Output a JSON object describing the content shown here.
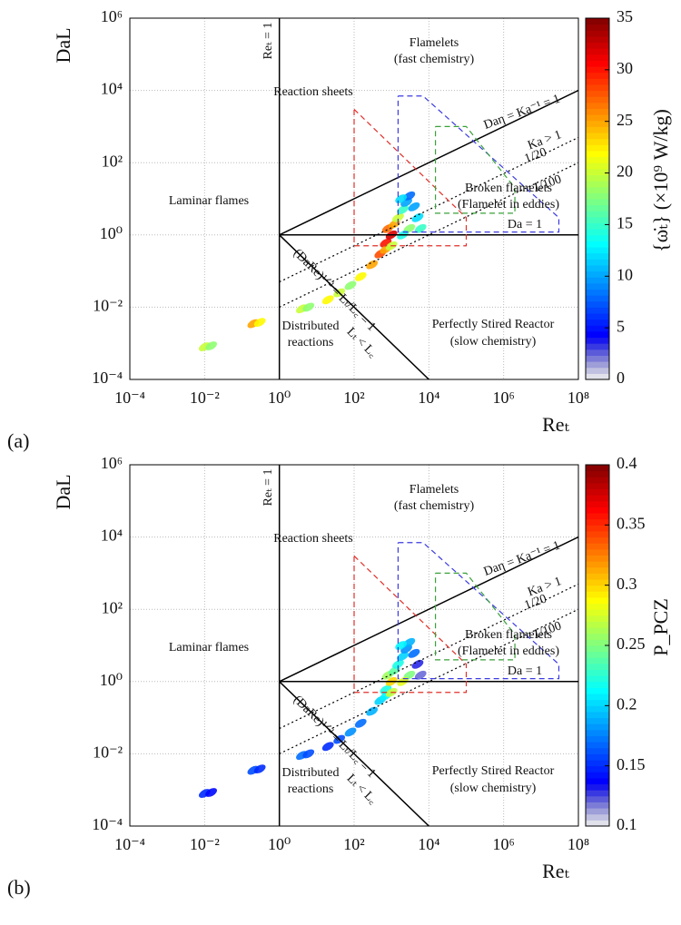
{
  "chart_data": [
    {
      "type": "scatter",
      "panel": "(a)",
      "xlabel": "Reₜ",
      "ylabel": "DaL",
      "log_x": true,
      "log_y": true,
      "grid": true,
      "xlim": [
        0.0001,
        100000000
      ],
      "ylim": [
        0.0001,
        1000000
      ],
      "xticks": [
        {
          "value": 0.0001,
          "label": "10⁻⁴"
        },
        {
          "value": 0.01,
          "label": "10⁻²"
        },
        {
          "value": 1,
          "label": "10⁰"
        },
        {
          "value": 100,
          "label": "10²"
        },
        {
          "value": 10000,
          "label": "10⁴"
        },
        {
          "value": 1000000,
          "label": "10⁶"
        },
        {
          "value": 100000000,
          "label": "10⁸"
        }
      ],
      "yticks": [
        {
          "value": 0.0001,
          "label": "10⁻⁴"
        },
        {
          "value": 0.01,
          "label": "10⁻²"
        },
        {
          "value": 1,
          "label": "10⁰"
        },
        {
          "value": 100,
          "label": "10²"
        },
        {
          "value": 10000,
          "label": "10⁴"
        },
        {
          "value": 1000000,
          "label": "10⁶"
        }
      ],
      "colormap": "jet",
      "clim": [
        0,
        35
      ],
      "cticks": [
        0,
        5,
        10,
        15,
        20,
        25,
        30,
        35
      ],
      "colorbar_label": "{ω̇ₜ} (×10⁹ W/kg)",
      "x": [
        0.01,
        0.015,
        0.2,
        0.3,
        4,
        6,
        20,
        40,
        80,
        150,
        300,
        500,
        700,
        1000,
        800,
        1200,
        1500,
        2000,
        2500,
        3000,
        1800,
        4000,
        5000,
        6000,
        3000,
        2000,
        700,
        1000
      ],
      "y": [
        0.0008,
        0.00085,
        0.0035,
        0.0038,
        0.009,
        0.01,
        0.016,
        0.025,
        0.04,
        0.07,
        0.15,
        0.3,
        0.6,
        1,
        1.5,
        2,
        3,
        5,
        8,
        12,
        10,
        6,
        3,
        1.5,
        1.5,
        1,
        0.4,
        0.5
      ],
      "c": [
        20,
        18,
        25,
        22,
        20,
        18,
        22,
        20,
        18,
        22,
        25,
        28,
        30,
        32,
        27,
        25,
        20,
        15,
        10,
        8,
        12,
        10,
        12,
        15,
        18,
        14,
        25,
        20
      ],
      "lines": [
        {
          "color": "#000000",
          "dash": "none",
          "x": [
            1,
            1
          ],
          "y": [
            0.0001,
            1000000
          ]
        },
        {
          "color": "#000000",
          "dash": "none",
          "x": [
            1,
            100000000
          ],
          "y": [
            1,
            10000
          ]
        },
        {
          "color": "#000000",
          "dash": "none",
          "x": [
            1,
            100000000
          ],
          "y": [
            1,
            1
          ]
        },
        {
          "color": "#000000",
          "dash": "none",
          "x": [
            1,
            10000
          ],
          "y": [
            1,
            0.0001
          ]
        },
        {
          "color": "#000000",
          "dash": "dotted",
          "x": [
            1,
            100000000
          ],
          "y": [
            0.05,
            500
          ]
        },
        {
          "color": "#000000",
          "dash": "dotted",
          "x": [
            1,
            100000000
          ],
          "y": [
            0.01,
            100
          ]
        },
        {
          "color": "#e0302a",
          "dash": "dashed",
          "x": [
            100,
            100000,
            100000,
            100,
            100
          ],
          "y": [
            3000,
            3,
            0.5,
            0.5,
            3000
          ]
        },
        {
          "color": "#3a3ae0",
          "dash": "dashed",
          "x": [
            1500,
            7000,
            30000000,
            30000000,
            1500,
            1500
          ],
          "y": [
            7000,
            7000,
            3,
            1.2,
            1.2,
            7000
          ]
        },
        {
          "color": "#3aa03a",
          "dash": "dashed",
          "x": [
            15000,
            100000,
            2000000,
            2000000,
            15000,
            15000
          ],
          "y": [
            1000,
            1000,
            20,
            4,
            4,
            1000
          ]
        }
      ],
      "annotations": [
        "Flamelets",
        "(fast chemistry)",
        "Reaction sheets",
        "Daη = Ka⁻¹ = 1",
        "Ka > 1",
        "1/20",
        "1/100",
        "Broken flamelets",
        "(Flamelet in eddies)",
        "Da = 1",
        "Laminar flames",
        "Reₜ = 1",
        "(DaRe)¹ᐟ² = Lₜ/L꜀ = 1",
        "Lₜ < L꜀",
        "Distributed",
        "reactions",
        "Perfectly Stired Reactor",
        "(slow chemistry)"
      ]
    },
    {
      "type": "scatter",
      "panel": "(b)",
      "xlabel": "Reₜ",
      "ylabel": "DaL",
      "log_x": true,
      "log_y": true,
      "grid": true,
      "xlim": [
        0.0001,
        100000000
      ],
      "ylim": [
        0.0001,
        1000000
      ],
      "xticks": [
        {
          "value": 0.0001,
          "label": "10⁻⁴"
        },
        {
          "value": 0.01,
          "label": "10⁻²"
        },
        {
          "value": 1,
          "label": "10⁰"
        },
        {
          "value": 100,
          "label": "10²"
        },
        {
          "value": 10000,
          "label": "10⁴"
        },
        {
          "value": 1000000,
          "label": "10⁶"
        },
        {
          "value": 100000000,
          "label": "10⁸"
        }
      ],
      "yticks": [
        {
          "value": 0.0001,
          "label": "10⁻⁴"
        },
        {
          "value": 0.01,
          "label": "10⁻²"
        },
        {
          "value": 1,
          "label": "10⁰"
        },
        {
          "value": 100,
          "label": "10²"
        },
        {
          "value": 10000,
          "label": "10⁴"
        },
        {
          "value": 1000000,
          "label": "10⁶"
        }
      ],
      "colormap": "jet",
      "clim": [
        0.1,
        0.4
      ],
      "cticks": [
        0.1,
        0.15,
        0.2,
        0.25,
        0.3,
        0.35,
        0.4
      ],
      "colorbar_label": "P_PCZ",
      "x": [
        0.01,
        0.015,
        0.2,
        0.3,
        4,
        6,
        20,
        40,
        80,
        150,
        300,
        500,
        700,
        1000,
        800,
        1200,
        1500,
        2000,
        2500,
        3000,
        1800,
        4000,
        5000,
        6000,
        3000,
        2000,
        700,
        1000
      ],
      "y": [
        0.0008,
        0.00085,
        0.0035,
        0.0038,
        0.009,
        0.01,
        0.016,
        0.025,
        0.04,
        0.07,
        0.15,
        0.3,
        0.6,
        1,
        1.5,
        2,
        3,
        5,
        8,
        12,
        10,
        6,
        3,
        1.5,
        1.5,
        1,
        0.4,
        0.5
      ],
      "c": [
        0.15,
        0.14,
        0.16,
        0.15,
        0.17,
        0.16,
        0.15,
        0.16,
        0.18,
        0.17,
        0.19,
        0.2,
        0.22,
        0.3,
        0.26,
        0.24,
        0.22,
        0.2,
        0.18,
        0.19,
        0.21,
        0.17,
        0.13,
        0.12,
        0.25,
        0.28,
        0.21,
        0.27
      ],
      "lines": [
        {
          "color": "#000000",
          "dash": "none",
          "x": [
            1,
            1
          ],
          "y": [
            0.0001,
            1000000
          ]
        },
        {
          "color": "#000000",
          "dash": "none",
          "x": [
            1,
            100000000
          ],
          "y": [
            1,
            10000
          ]
        },
        {
          "color": "#000000",
          "dash": "none",
          "x": [
            1,
            100000000
          ],
          "y": [
            1,
            1
          ]
        },
        {
          "color": "#000000",
          "dash": "none",
          "x": [
            1,
            10000
          ],
          "y": [
            1,
            0.0001
          ]
        },
        {
          "color": "#000000",
          "dash": "dotted",
          "x": [
            1,
            100000000
          ],
          "y": [
            0.05,
            500
          ]
        },
        {
          "color": "#000000",
          "dash": "dotted",
          "x": [
            1,
            100000000
          ],
          "y": [
            0.01,
            100
          ]
        },
        {
          "color": "#e0302a",
          "dash": "dashed",
          "x": [
            100,
            100000,
            100000,
            100,
            100
          ],
          "y": [
            3000,
            3,
            0.5,
            0.5,
            3000
          ]
        },
        {
          "color": "#3a3ae0",
          "dash": "dashed",
          "x": [
            1500,
            7000,
            30000000,
            30000000,
            1500,
            1500
          ],
          "y": [
            7000,
            7000,
            3,
            1.2,
            1.2,
            7000
          ]
        },
        {
          "color": "#3aa03a",
          "dash": "dashed",
          "x": [
            15000,
            100000,
            2000000,
            2000000,
            15000,
            15000
          ],
          "y": [
            1000,
            1000,
            20,
            4,
            4,
            1000
          ]
        }
      ],
      "annotations": [
        "Flamelets",
        "(fast chemistry)",
        "Reaction sheets",
        "Daη = Ka⁻¹ = 1",
        "Ka > 1",
        "1/20",
        "1/100",
        "Broken flamelets",
        "(Flamelet in eddies)",
        "Da = 1",
        "Laminar flames",
        "Reₜ = 1",
        "(DaRe)¹ᐟ² = Lₜ/L꜀ = 1",
        "Lₜ < L꜀",
        "Distributed",
        "reactions",
        "Perfectly Stired Reactor",
        "(slow chemistry)"
      ]
    }
  ]
}
